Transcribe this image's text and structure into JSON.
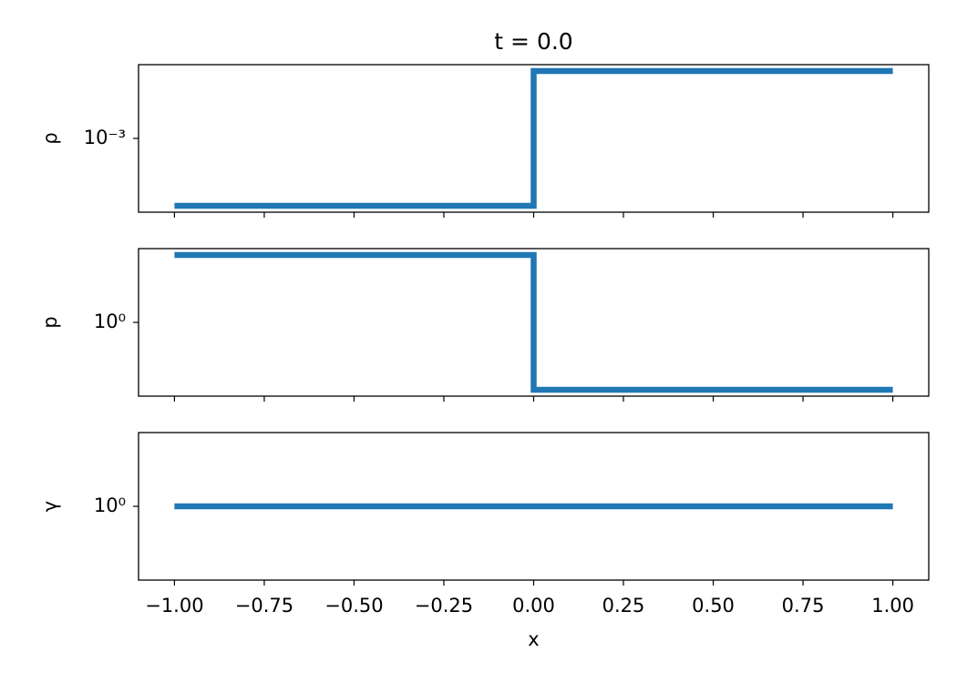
{
  "chart_data": [
    {
      "type": "line",
      "title": "t = 0.0",
      "ylabel": "ρ",
      "log_y": true,
      "x": [
        -1,
        0,
        0,
        1
      ],
      "series": [
        {
          "color": "#1f77b4",
          "values": [
            0.0005,
            0.0005,
            0.002,
            0.002
          ]
        }
      ],
      "xlim": [
        -1.1,
        1.1
      ],
      "xticks": [
        -1,
        -0.75,
        -0.5,
        -0.25,
        0,
        0.25,
        0.5,
        0.75,
        1
      ],
      "ylim": [
        0.000468,
        0.002136
      ],
      "yticks": [
        {
          "value": 0.001,
          "label": "10⁻³"
        }
      ]
    },
    {
      "type": "line",
      "ylabel": "p",
      "log_y": true,
      "x": [
        -1,
        0,
        0,
        1
      ],
      "series": [
        {
          "color": "#1f77b4",
          "values": [
            2,
            2,
            0.5,
            0.5
          ]
        }
      ],
      "xlim": [
        -1.1,
        1.1
      ],
      "xticks": [
        -1,
        -0.75,
        -0.5,
        -0.25,
        0,
        0.25,
        0.5,
        0.75,
        1
      ],
      "ylim": [
        0.468,
        2.136
      ],
      "yticks": [
        {
          "value": 1,
          "label": "10⁰"
        }
      ]
    },
    {
      "type": "line",
      "ylabel": "γ",
      "xlabel": "x",
      "log_y": true,
      "x": [
        -1,
        1
      ],
      "series": [
        {
          "color": "#1f77b4",
          "values": [
            1,
            1
          ]
        }
      ],
      "xlim": [
        -1.1,
        1.1
      ],
      "xticks": [
        {
          "value": -1,
          "label": "−1.00"
        },
        {
          "value": -0.75,
          "label": "−0.75"
        },
        {
          "value": -0.5,
          "label": "−0.50"
        },
        {
          "value": -0.25,
          "label": "−0.25"
        },
        {
          "value": 0,
          "label": "0.00"
        },
        {
          "value": 0.25,
          "label": "0.25"
        },
        {
          "value": 0.5,
          "label": "0.50"
        },
        {
          "value": 0.75,
          "label": "0.75"
        },
        {
          "value": 1,
          "label": "1.00"
        }
      ],
      "ylim": [
        0.5,
        2
      ],
      "yticks": [
        {
          "value": 1,
          "label": "10⁰"
        }
      ]
    }
  ]
}
